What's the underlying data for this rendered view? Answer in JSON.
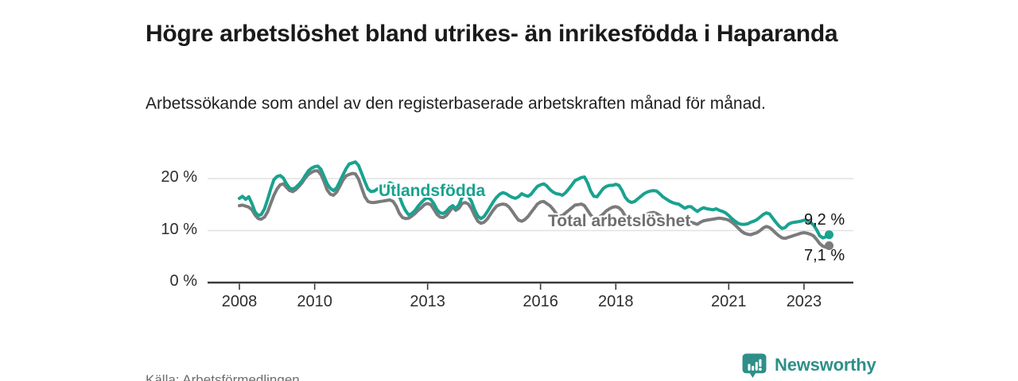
{
  "header": {
    "title": "Högre arbetslöshet bland utrikes- än inrikesfödda i Haparanda",
    "subtitle": "Arbetssökande som andel av den registerbaserade arbetskraften månad för månad."
  },
  "footer": {
    "source": "Källa: Arbetsförmedlingen",
    "brand": "Newsworthy",
    "brand_icon": "bar-chart-speech-bubble-icon"
  },
  "colors": {
    "foreign_born": "#19a28f",
    "total": "#7b7b7b",
    "total_label": "#6f6f6f",
    "grid": "#e1e1e1",
    "axis": "#3a3a3a",
    "value_label": "#141414",
    "brand": "#2e8f88"
  },
  "chart_data": {
    "type": "line",
    "title": "Högre arbetslöshet bland utrikes- än inrikesfödda i Haparanda",
    "xlabel": "",
    "ylabel": "Arbetssökande som andel av den registerbaserade arbetskraften",
    "x_unit": "månad",
    "x_start_year": 2008,
    "points_per_year": 12,
    "x_tick_years": [
      2008,
      2010,
      2013,
      2016,
      2018,
      2021,
      2023
    ],
    "y_ticks": [
      {
        "value": 0,
        "label": "0 %"
      },
      {
        "value": 10,
        "label": "10 %"
      },
      {
        "value": 20,
        "label": "20 %"
      }
    ],
    "ylim": [
      0,
      24
    ],
    "grid": true,
    "series": [
      {
        "name": "Utlandsfödda",
        "color": "#19a28f",
        "end_label": "9,2 %",
        "end_value": 9.2,
        "values": [
          16.2,
          16.6,
          16.0,
          16.5,
          15.2,
          13.6,
          12.9,
          13.1,
          14.2,
          16.0,
          18.0,
          19.8,
          20.4,
          20.6,
          20.1,
          19.0,
          18.2,
          18.0,
          18.3,
          18.9,
          19.6,
          20.6,
          21.5,
          22.0,
          22.3,
          22.4,
          21.8,
          20.4,
          19.0,
          18.1,
          17.7,
          18.2,
          19.4,
          20.7,
          21.9,
          22.8,
          23.0,
          23.2,
          22.5,
          21.0,
          19.4,
          18.0,
          17.5,
          17.6,
          18.0,
          18.3,
          18.5,
          18.7,
          19.2,
          18.9,
          18.1,
          16.6,
          15.0,
          13.8,
          13.0,
          13.3,
          13.9,
          14.7,
          15.4,
          16.0,
          16.3,
          16.0,
          15.2,
          14.0,
          13.4,
          13.3,
          13.7,
          14.4,
          14.8,
          14.2,
          15.0,
          16.4,
          16.8,
          16.6,
          15.6,
          14.0,
          12.8,
          12.3,
          12.7,
          13.6,
          14.6,
          15.6,
          16.4,
          17.0,
          17.3,
          17.1,
          16.7,
          16.4,
          16.2,
          16.5,
          17.1,
          16.8,
          16.6,
          17.0,
          17.8,
          18.5,
          18.8,
          19.0,
          18.6,
          17.9,
          17.4,
          17.1,
          17.0,
          16.8,
          17.3,
          18.0,
          18.8,
          19.6,
          19.9,
          20.2,
          20.3,
          19.2,
          17.6,
          16.6,
          16.5,
          17.3,
          18.1,
          18.5,
          18.7,
          18.7,
          18.9,
          18.7,
          17.7,
          16.4,
          15.7,
          15.4,
          15.6,
          16.1,
          16.6,
          17.1,
          17.4,
          17.6,
          17.7,
          17.6,
          17.1,
          16.5,
          16.1,
          15.7,
          15.4,
          15.2,
          15.1,
          14.7,
          14.3,
          14.6,
          14.6,
          14.1,
          13.7,
          14.1,
          14.4,
          14.2,
          14.1,
          14.0,
          14.2,
          13.9,
          13.7,
          13.4,
          12.9,
          12.3,
          11.8,
          11.4,
          11.2,
          11.2,
          11.3,
          11.6,
          11.8,
          12.1,
          12.6,
          13.1,
          13.4,
          13.2,
          12.4,
          11.6,
          10.9,
          10.4,
          10.6,
          11.2,
          11.5,
          11.6,
          11.7,
          11.8,
          12.0,
          11.9,
          11.6,
          11.1,
          10.2,
          9.0,
          8.6,
          8.8,
          9.2
        ]
      },
      {
        "name": "Total arbetslöshet",
        "color": "#7b7b7b",
        "end_label": "7,1 %",
        "end_value": 7.1,
        "values": [
          14.8,
          14.9,
          14.7,
          14.5,
          14.0,
          13.0,
          12.3,
          12.2,
          12.6,
          13.6,
          15.2,
          16.8,
          18.0,
          18.8,
          19.0,
          18.3,
          17.7,
          17.5,
          17.9,
          18.5,
          19.2,
          20.1,
          20.8,
          21.2,
          21.5,
          21.5,
          20.8,
          19.4,
          17.8,
          17.0,
          16.8,
          17.4,
          18.5,
          19.7,
          20.5,
          20.8,
          21.0,
          20.9,
          19.9,
          18.2,
          16.5,
          15.6,
          15.4,
          15.4,
          15.5,
          15.6,
          15.7,
          15.8,
          15.9,
          15.6,
          14.7,
          13.3,
          12.5,
          12.3,
          12.4,
          12.8,
          13.3,
          13.9,
          14.4,
          15.0,
          15.2,
          15.0,
          14.1,
          13.1,
          12.6,
          12.5,
          12.9,
          13.7,
          14.5,
          13.9,
          14.3,
          15.2,
          15.4,
          15.1,
          14.2,
          12.9,
          11.8,
          11.4,
          11.6,
          12.2,
          13.1,
          14.0,
          14.7,
          15.0,
          15.1,
          15.0,
          14.5,
          13.7,
          12.8,
          12.0,
          11.8,
          12.1,
          12.7,
          13.5,
          14.3,
          15.1,
          15.5,
          15.6,
          15.2,
          14.8,
          14.1,
          13.3,
          12.8,
          12.9,
          13.4,
          13.9,
          14.4,
          14.9,
          15.0,
          15.1,
          14.8,
          13.9,
          13.0,
          12.4,
          12.3,
          12.7,
          13.2,
          13.8,
          14.2,
          14.5,
          14.6,
          14.4,
          13.8,
          12.8,
          12.0,
          11.6,
          11.7,
          12.1,
          12.5,
          12.9,
          13.2,
          13.4,
          13.5,
          13.3,
          12.9,
          12.5,
          12.2,
          12.0,
          11.8,
          11.7,
          11.6,
          11.4,
          11.2,
          11.4,
          11.6,
          11.4,
          11.2,
          11.6,
          11.9,
          12.0,
          12.1,
          12.2,
          12.3,
          12.4,
          12.3,
          12.2,
          12.0,
          11.6,
          11.1,
          10.5,
          9.9,
          9.5,
          9.3,
          9.2,
          9.4,
          9.6,
          10.0,
          10.5,
          10.8,
          10.6,
          10.1,
          9.5,
          9.0,
          8.6,
          8.5,
          8.7,
          8.9,
          9.1,
          9.3,
          9.5,
          9.6,
          9.5,
          9.3,
          9.0,
          8.3,
          7.5,
          7.0,
          6.8,
          7.1
        ]
      }
    ]
  }
}
